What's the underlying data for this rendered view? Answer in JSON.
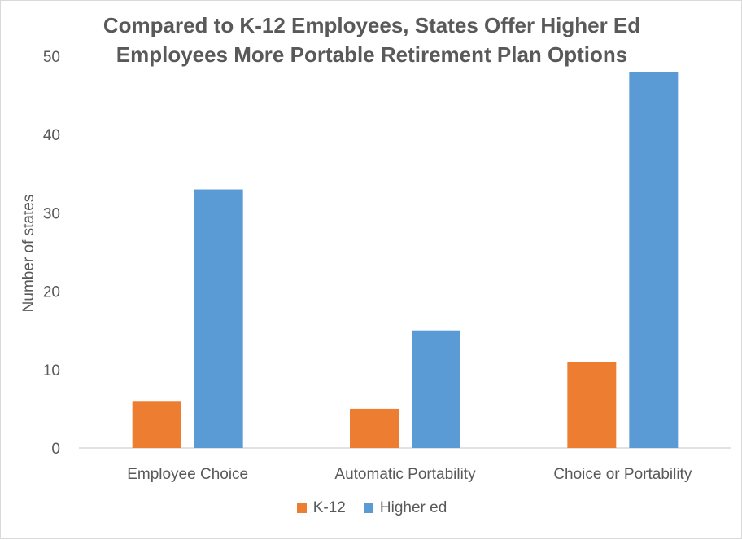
{
  "chart_data": {
    "type": "bar",
    "title_lines": [
      "Compared to K-12 Employees, States Offer Higher Ed",
      "Employees More Portable Retirement Plan Options"
    ],
    "ylabel": "Number of states",
    "xlabel": "",
    "ylim": [
      0,
      50
    ],
    "yticks": [
      0,
      10,
      20,
      30,
      40,
      50
    ],
    "categories": [
      "Employee Choice",
      "Automatic Portability",
      "Choice or Portability"
    ],
    "series": [
      {
        "name": "K-12",
        "color": "#ed7d31",
        "values": [
          6,
          5,
          11
        ]
      },
      {
        "name": "Higher ed",
        "color": "#5b9bd5",
        "values": [
          33,
          15,
          48
        ]
      }
    ],
    "grid": false,
    "legend_position": "bottom"
  }
}
